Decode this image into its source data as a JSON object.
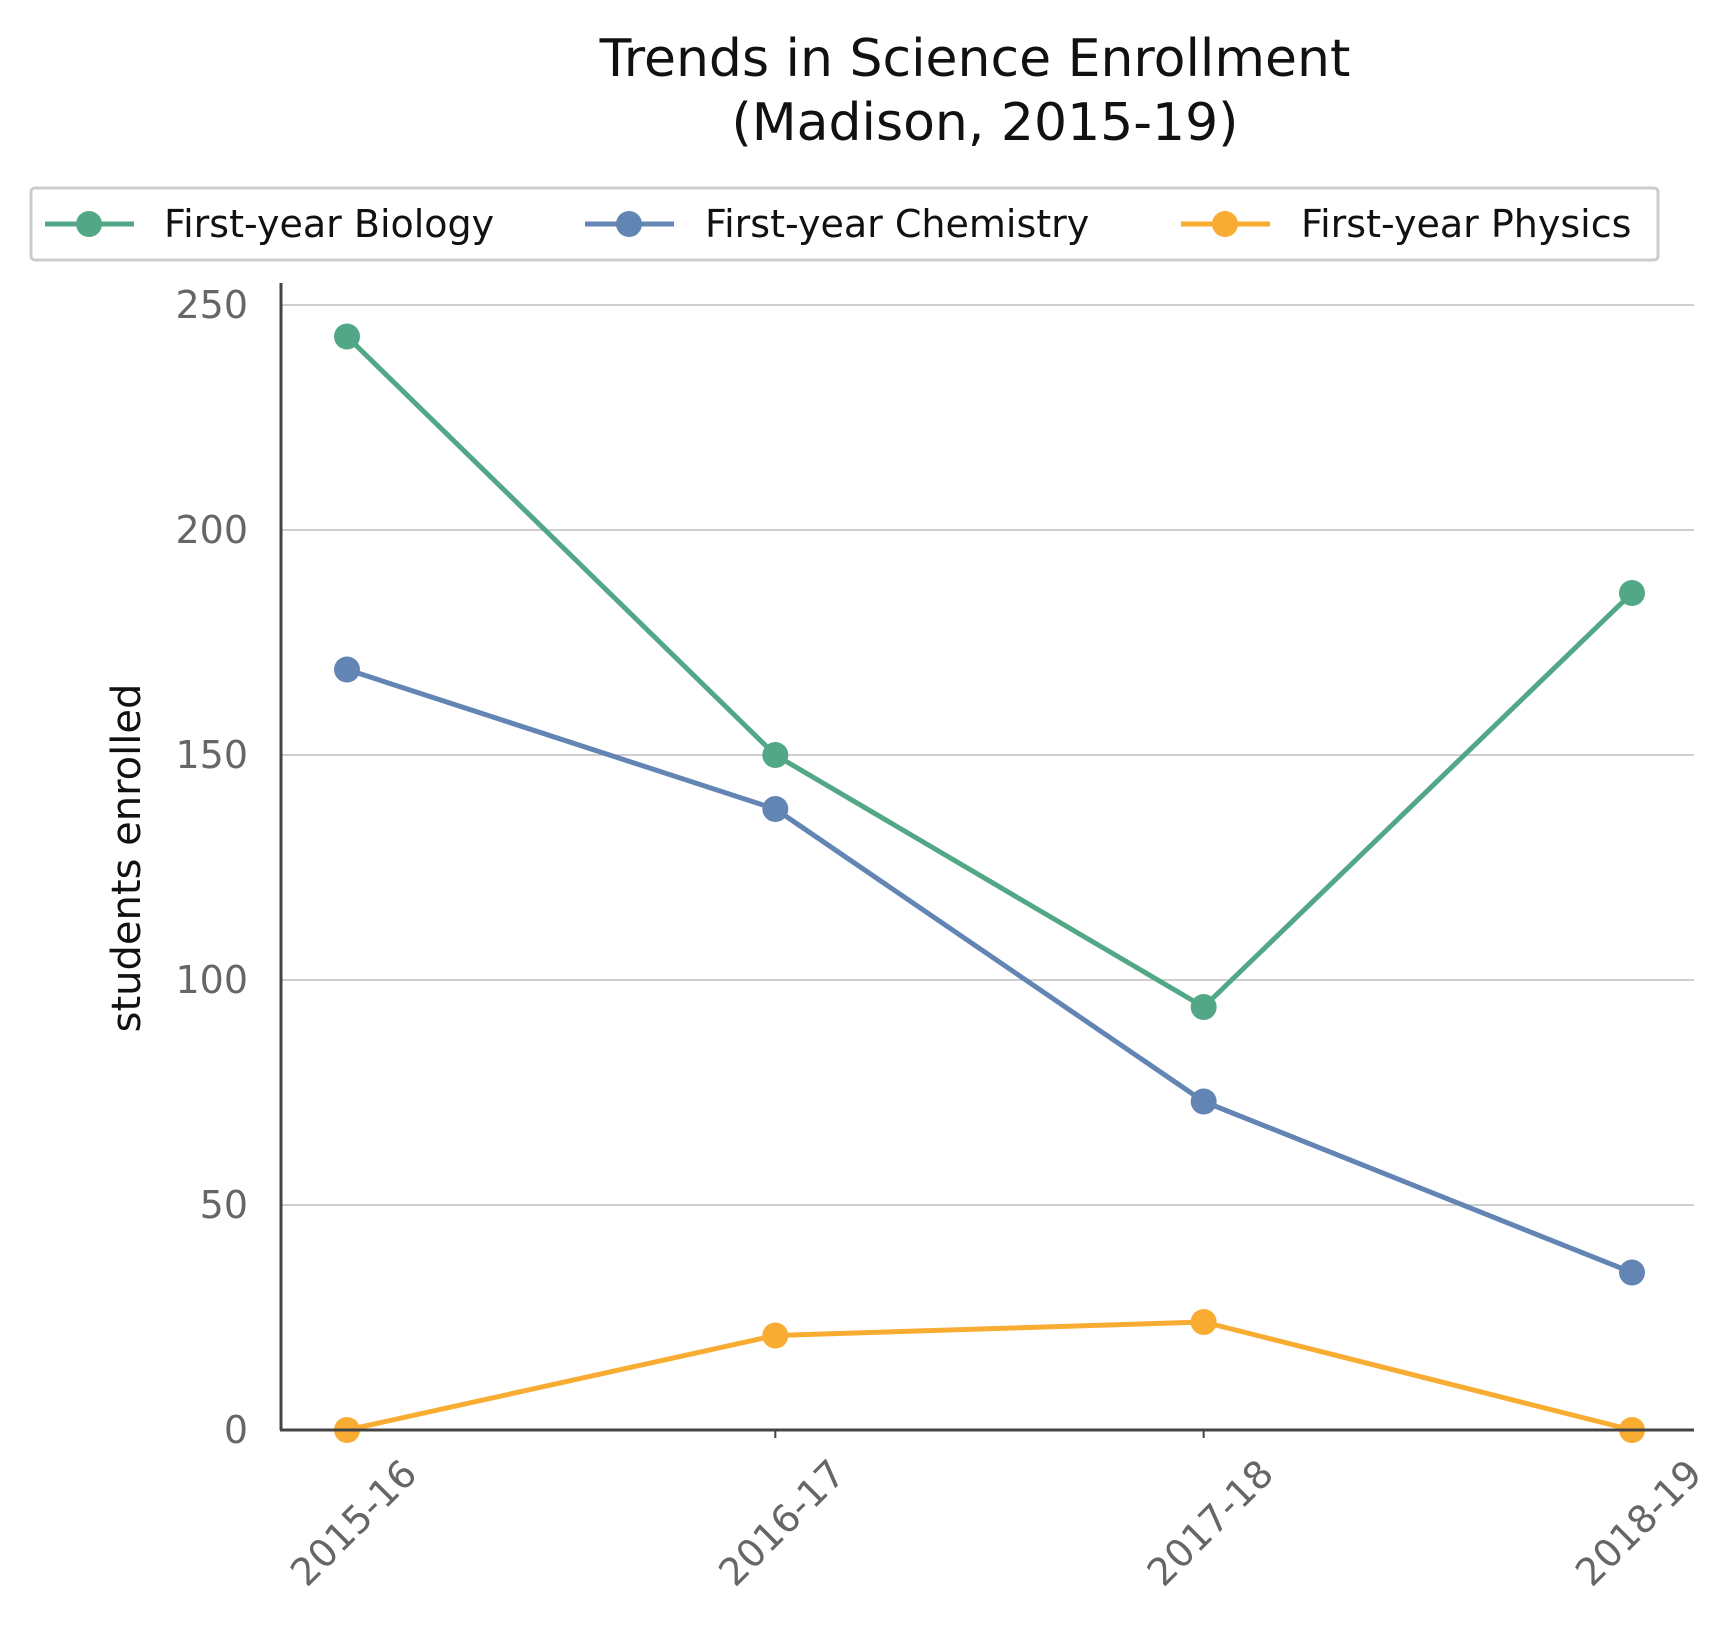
{
  "chart_data": {
    "type": "line",
    "title": "Trends in Science Enrollment",
    "subtitle": "(Madison, 2015-19)",
    "xlabel": "",
    "ylabel": "students enrolled",
    "categories": [
      "2015-16",
      "2016-17",
      "2017-18",
      "2018-19"
    ],
    "ylim": [
      0,
      255
    ],
    "yticks": [
      0,
      50,
      100,
      150,
      200,
      250
    ],
    "grid": "horizontal",
    "legend_position": "top",
    "series": [
      {
        "name": "First-year Biology",
        "color": "#52a886",
        "values": [
          243,
          150,
          94,
          186
        ]
      },
      {
        "name": "First-year Chemistry",
        "color": "#6285b3",
        "values": [
          169,
          138,
          73,
          35
        ]
      },
      {
        "name": "First-year Physics",
        "color": "#f9ac32",
        "values": [
          0,
          21,
          24,
          0
        ]
      }
    ]
  }
}
